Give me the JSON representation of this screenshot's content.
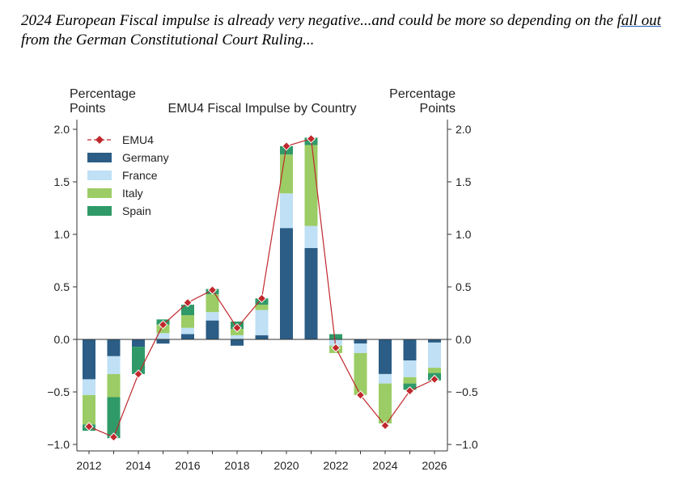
{
  "headline": {
    "part1": "2024 European Fiscal impulse is already very negative...and could be more so depending on the ",
    "underlined": "fall out",
    "part2": " from the German Constitutional Court Ruling..."
  },
  "chart_data": {
    "type": "bar",
    "stacked": true,
    "title": "EMU4 Fiscal Impulse by Country",
    "ylabel_left": [
      "Percentage",
      "Points"
    ],
    "ylabel_right": [
      "Percentage",
      "Points"
    ],
    "ylim": [
      -1.0,
      2.0
    ],
    "yticks": [
      "2.0",
      "1.5",
      "1.0",
      "0.5",
      "0.0",
      "−0.5",
      "−1.0"
    ],
    "ytick_values": [
      2.0,
      1.5,
      1.0,
      0.5,
      0.0,
      -0.5,
      -1.0
    ],
    "xticks": [
      "2012",
      "2014",
      "2016",
      "2018",
      "2020",
      "2022",
      "2024",
      "2026"
    ],
    "categories": [
      "2012",
      "2013",
      "2014",
      "2015",
      "2016",
      "2017",
      "2018",
      "2019",
      "2020",
      "2021",
      "2022",
      "2023",
      "2024",
      "2025",
      "2026"
    ],
    "series": [
      {
        "name": "Germany",
        "color": "#2b5d86",
        "values": [
          -0.38,
          -0.16,
          -0.07,
          -0.04,
          0.05,
          0.18,
          -0.06,
          0.04,
          1.06,
          0.87,
          0.0,
          -0.04,
          -0.33,
          -0.2,
          -0.03
        ]
      },
      {
        "name": "France",
        "color": "#bfe0f5",
        "values": [
          -0.15,
          -0.17,
          0.0,
          0.06,
          0.06,
          0.08,
          0.04,
          0.24,
          0.33,
          0.21,
          -0.06,
          -0.09,
          -0.09,
          -0.16,
          -0.24
        ]
      },
      {
        "name": "Italy",
        "color": "#9ccc65",
        "values": [
          -0.28,
          -0.22,
          0.0,
          0.08,
          0.12,
          0.17,
          0.06,
          0.05,
          0.37,
          0.77,
          -0.07,
          -0.4,
          -0.38,
          -0.06,
          -0.05
        ]
      },
      {
        "name": "Spain",
        "color": "#2f9a68",
        "values": [
          -0.06,
          -0.39,
          -0.26,
          0.05,
          0.1,
          0.05,
          0.07,
          0.06,
          0.08,
          0.07,
          0.05,
          0.0,
          0.0,
          -0.06,
          -0.07
        ]
      }
    ],
    "line_series": {
      "name": "EMU4",
      "color": "#c0282c",
      "values": [
        -0.83,
        -0.93,
        -0.33,
        0.14,
        0.35,
        0.47,
        0.11,
        0.39,
        1.84,
        1.91,
        -0.08,
        -0.53,
        -0.82,
        -0.49,
        -0.38
      ]
    },
    "legend": [
      "EMU4",
      "Germany",
      "France",
      "Italy",
      "Spain"
    ],
    "legend_position": "top-left",
    "grid": false
  }
}
